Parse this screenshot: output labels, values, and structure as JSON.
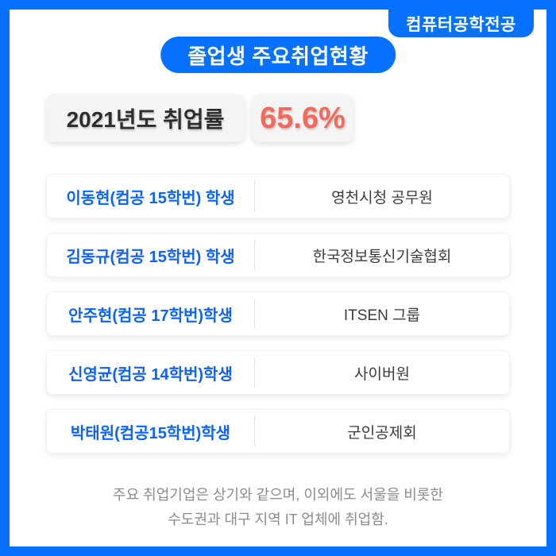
{
  "colors": {
    "accent_blue": "#0671fe",
    "student_name_blue": "#1063f2",
    "rate_value_red": "#f4695b",
    "rate_box_bg": "#f4f4f5",
    "footnote_grey": "#8b8b8b"
  },
  "header": {
    "corner_badge_label": "컴퓨터공학전공",
    "title_badge_label": "졸업생 주요취업현황"
  },
  "rate": {
    "label": "2021년도 취업률",
    "value": "65.6%"
  },
  "rows": [
    {
      "student": "이동현(컴공 15학번) 학생",
      "employer": "영천시청 공무원"
    },
    {
      "student": "김동규(컴공 15학번) 학생",
      "employer": "한국정보통신기술협회"
    },
    {
      "student": "안주현(컴공 17학번)학생",
      "employer": "ITSEN 그룹"
    },
    {
      "student": "신영균(컴공 14학번)학생",
      "employer": "사이버원"
    },
    {
      "student": "박태원(컴공15학번)학생",
      "employer": "군인공제회"
    }
  ],
  "footnote": {
    "line1": "주요 취업기업은 상기와 같으며, 이외에도 서울을 비롯한",
    "line2": "수도권과 대구 지역 IT 업체에 취업함."
  }
}
